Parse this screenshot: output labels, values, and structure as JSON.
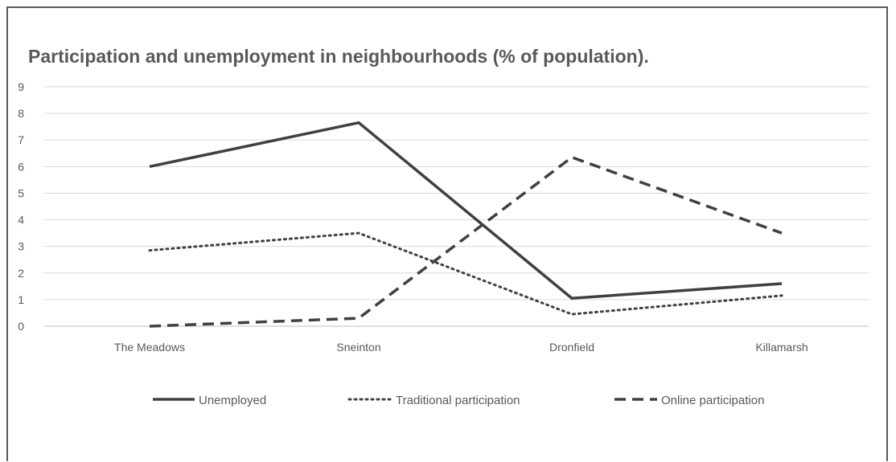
{
  "chart_data": {
    "type": "line",
    "title": "Participation and unemployment in neighbourhoods (% of population).",
    "categories": [
      "The Meadows",
      "Sneinton",
      "Dronfield",
      "Killamarsh"
    ],
    "ylim": [
      0,
      9
    ],
    "yticks": [
      "0",
      "1",
      "2",
      "3",
      "4",
      "5",
      "6",
      "7",
      "8",
      "9"
    ],
    "grid": true,
    "legend_position": "bottom",
    "series": [
      {
        "name": "Unemployed",
        "values": [
          6.0,
          7.65,
          1.05,
          1.6
        ],
        "style": "solid",
        "color": "#404040"
      },
      {
        "name": "Traditional participation",
        "values": [
          2.85,
          3.5,
          0.45,
          1.15
        ],
        "style": "dotted",
        "color": "#404040"
      },
      {
        "name": "Online participation",
        "values": [
          0.0,
          0.3,
          6.35,
          3.5
        ],
        "style": "dashed",
        "color": "#404040"
      }
    ]
  }
}
